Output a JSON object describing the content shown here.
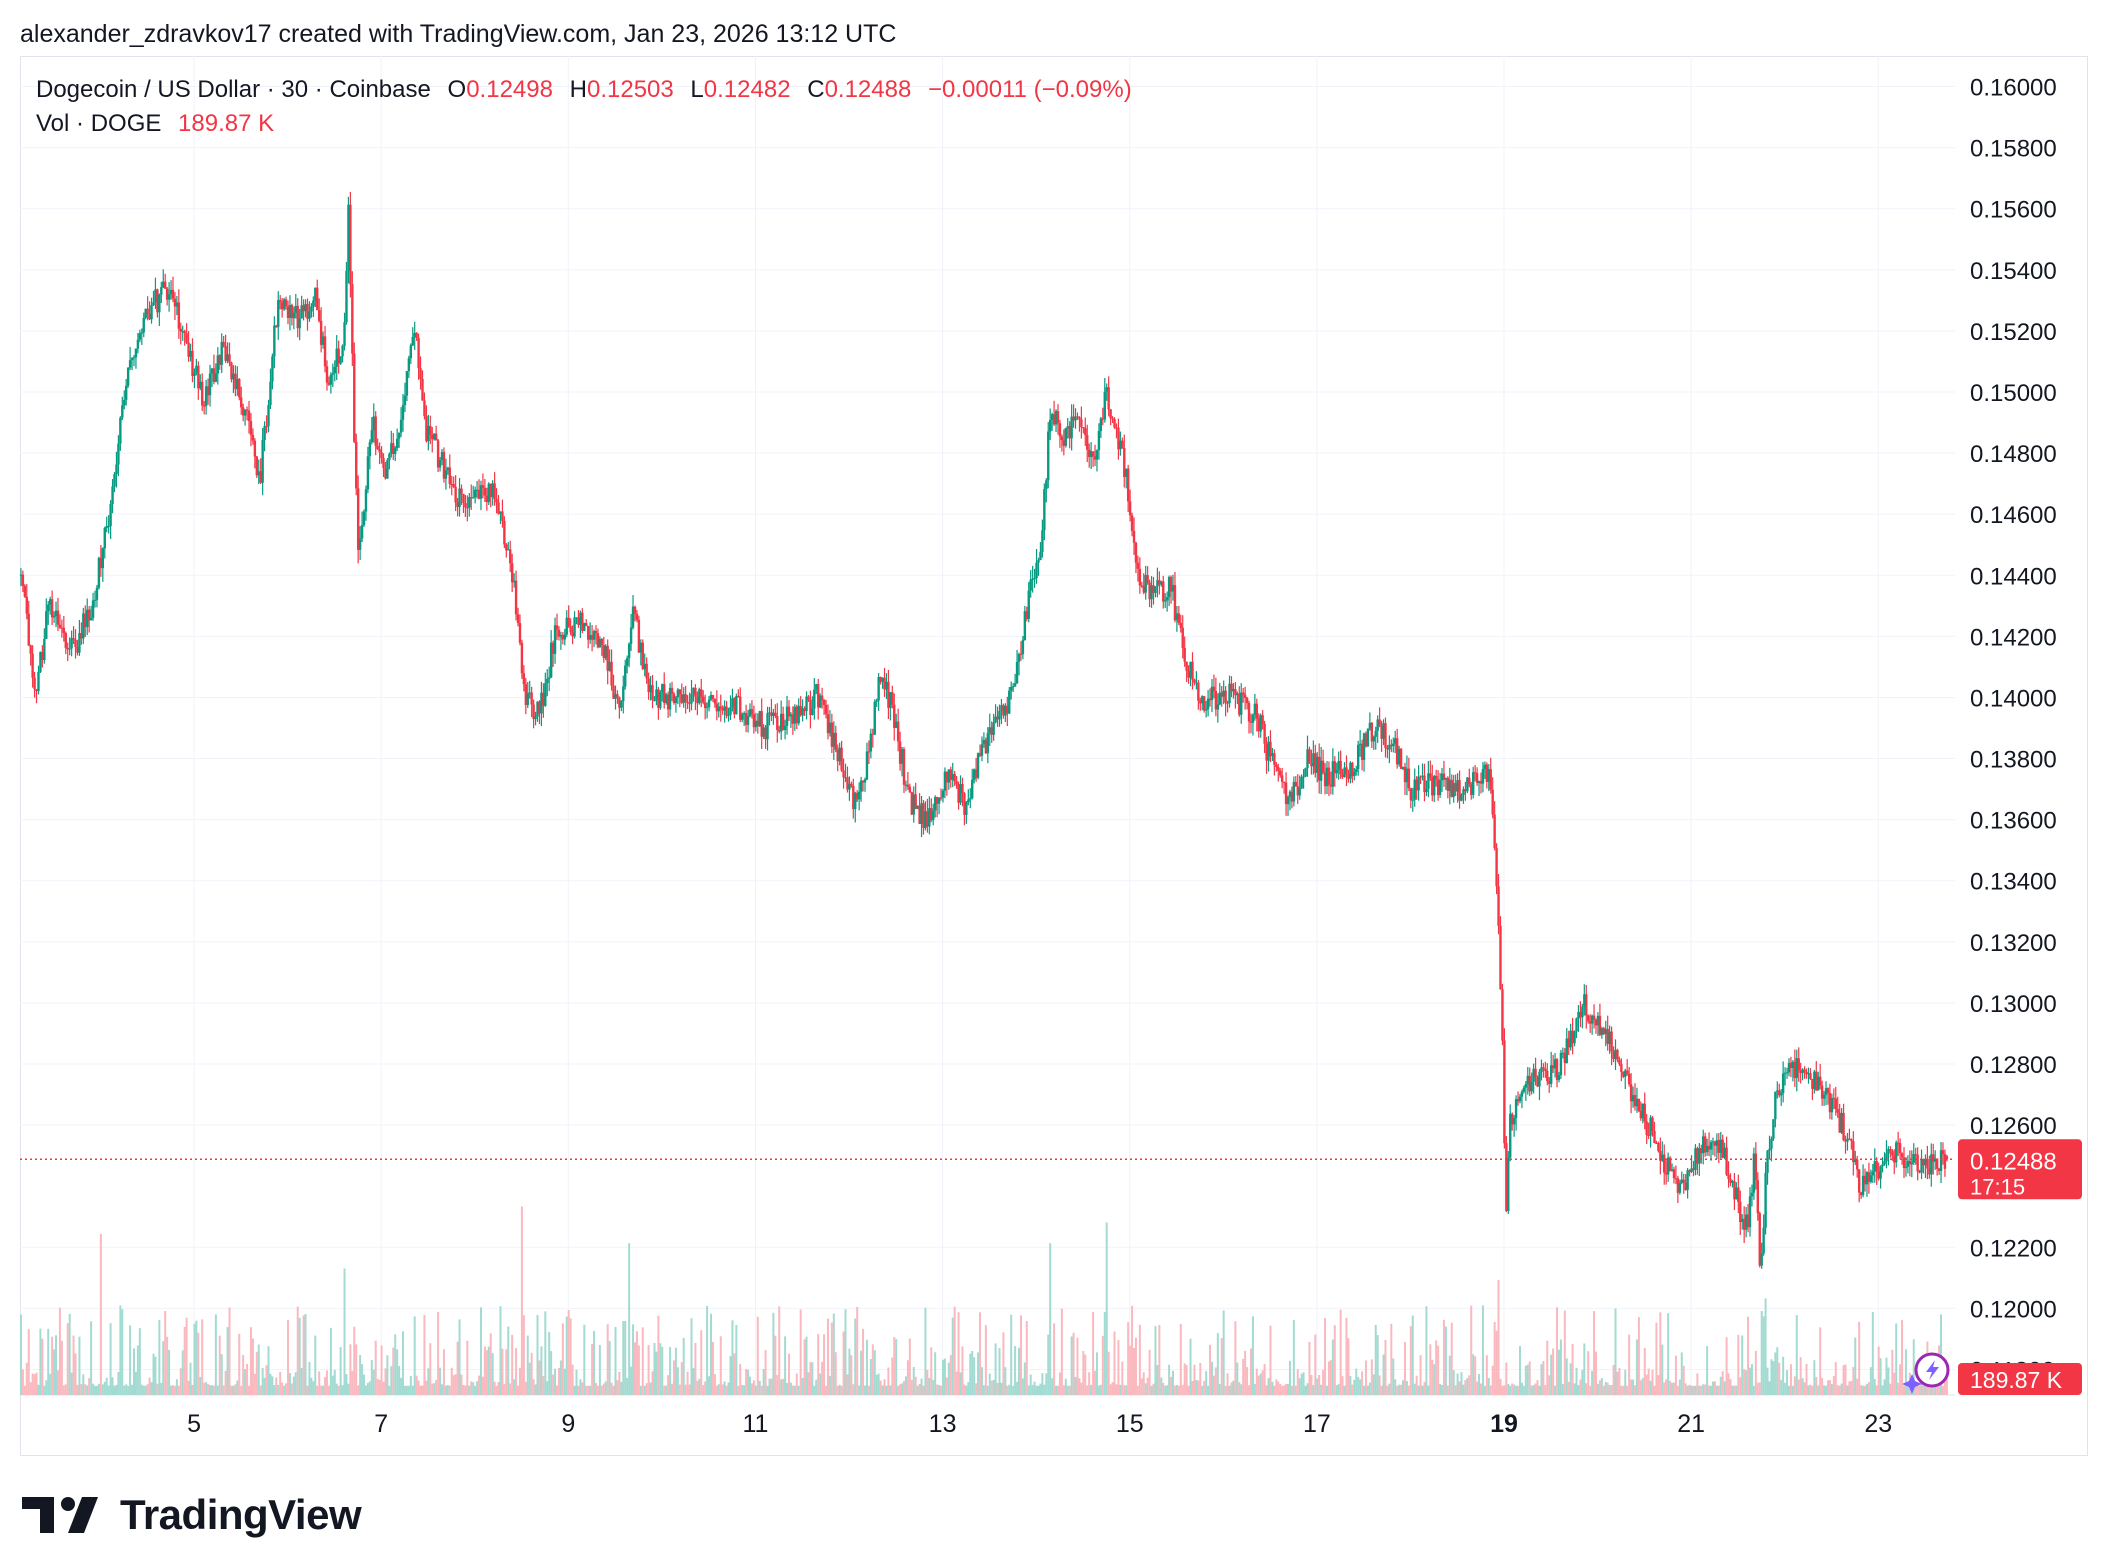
{
  "header": {
    "credit": "alexander_zdravkov17 created with TradingView.com, Jan 23, 2026 13:12 UTC"
  },
  "legend": {
    "symbol": "Dogecoin / US Dollar · 30 · Coinbase",
    "open_label": "O",
    "open": "0.12498",
    "high_label": "H",
    "high": "0.12503",
    "low_label": "L",
    "low": "0.12482",
    "close_label": "C",
    "close": "0.12488",
    "change": "−0.00011 (−0.09%)",
    "volume_label": "Vol · DOGE",
    "volume": "189.87 K"
  },
  "price_badge": {
    "price": "0.12488",
    "countdown": "17:15"
  },
  "volume_badge": "189.87 K",
  "brand": {
    "name": "TradingView"
  },
  "colors": {
    "up": "#089981",
    "down": "#f23645",
    "vol_up": "#a3dbd2",
    "vol_down": "#f9b9bf",
    "grid": "#f0f3fa",
    "text": "#131722"
  },
  "chart_data": {
    "type": "candlestick",
    "interval": "30 minutes",
    "y_axis": {
      "ticks": [
        "0.16000",
        "0.15800",
        "0.15600",
        "0.15400",
        "0.15200",
        "0.15000",
        "0.14800",
        "0.14600",
        "0.14400",
        "0.14200",
        "0.14000",
        "0.13800",
        "0.13600",
        "0.13400",
        "0.13200",
        "0.13000",
        "0.12800",
        "0.12600",
        "0.12200",
        "0.12000",
        "0.11800"
      ],
      "range": [
        0.117,
        0.161
      ]
    },
    "x_axis": {
      "ticks": [
        {
          "label": "5",
          "day": 5
        },
        {
          "label": "7",
          "day": 7
        },
        {
          "label": "9",
          "day": 9
        },
        {
          "label": "11",
          "day": 11
        },
        {
          "label": "13",
          "day": 13
        },
        {
          "label": "15",
          "day": 15
        },
        {
          "label": "17",
          "day": 17
        },
        {
          "label": "19",
          "day": 19,
          "bold": true
        },
        {
          "label": "21",
          "day": 21
        },
        {
          "label": "23",
          "day": 23
        }
      ],
      "range_days": [
        3.14,
        23.82
      ]
    },
    "current_price": 0.12488,
    "price_path": [
      {
        "day": 3.15,
        "price": 0.144
      },
      {
        "day": 3.3,
        "price": 0.14
      },
      {
        "day": 3.45,
        "price": 0.143
      },
      {
        "day": 3.7,
        "price": 0.1415
      },
      {
        "day": 3.9,
        "price": 0.143
      },
      {
        "day": 4.1,
        "price": 0.146
      },
      {
        "day": 4.3,
        "price": 0.151
      },
      {
        "day": 4.5,
        "price": 0.1525
      },
      {
        "day": 4.7,
        "price": 0.1535
      },
      {
        "day": 4.9,
        "price": 0.152
      },
      {
        "day": 5.1,
        "price": 0.1495
      },
      {
        "day": 5.3,
        "price": 0.1515
      },
      {
        "day": 5.5,
        "price": 0.15
      },
      {
        "day": 5.7,
        "price": 0.147
      },
      {
        "day": 5.9,
        "price": 0.153
      },
      {
        "day": 6.1,
        "price": 0.1525
      },
      {
        "day": 6.3,
        "price": 0.153
      },
      {
        "day": 6.45,
        "price": 0.15
      },
      {
        "day": 6.6,
        "price": 0.152
      },
      {
        "day": 6.65,
        "price": 0.156
      },
      {
        "day": 6.75,
        "price": 0.1445
      },
      {
        "day": 6.9,
        "price": 0.149
      },
      {
        "day": 7.05,
        "price": 0.1475
      },
      {
        "day": 7.2,
        "price": 0.1485
      },
      {
        "day": 7.35,
        "price": 0.1525
      },
      {
        "day": 7.45,
        "price": 0.149
      },
      {
        "day": 7.6,
        "price": 0.148
      },
      {
        "day": 7.8,
        "price": 0.1465
      },
      {
        "day": 8.0,
        "price": 0.1465
      },
      {
        "day": 8.2,
        "price": 0.147
      },
      {
        "day": 8.4,
        "price": 0.144
      },
      {
        "day": 8.55,
        "price": 0.14
      },
      {
        "day": 8.7,
        "price": 0.1395
      },
      {
        "day": 8.85,
        "price": 0.142
      },
      {
        "day": 9.1,
        "price": 0.1425
      },
      {
        "day": 9.35,
        "price": 0.142
      },
      {
        "day": 9.55,
        "price": 0.1395
      },
      {
        "day": 9.7,
        "price": 0.143
      },
      {
        "day": 9.85,
        "price": 0.14
      },
      {
        "day": 10.1,
        "price": 0.14
      },
      {
        "day": 10.5,
        "price": 0.14
      },
      {
        "day": 10.9,
        "price": 0.1395
      },
      {
        "day": 11.1,
        "price": 0.139
      },
      {
        "day": 11.4,
        "price": 0.1395
      },
      {
        "day": 11.65,
        "price": 0.14
      },
      {
        "day": 11.85,
        "price": 0.1385
      },
      {
        "day": 12.05,
        "price": 0.1365
      },
      {
        "day": 12.2,
        "price": 0.138
      },
      {
        "day": 12.35,
        "price": 0.141
      },
      {
        "day": 12.5,
        "price": 0.139
      },
      {
        "day": 12.65,
        "price": 0.1365
      },
      {
        "day": 12.85,
        "price": 0.136
      },
      {
        "day": 13.05,
        "price": 0.1375
      },
      {
        "day": 13.25,
        "price": 0.1365
      },
      {
        "day": 13.45,
        "price": 0.1385
      },
      {
        "day": 13.6,
        "price": 0.1395
      },
      {
        "day": 13.75,
        "price": 0.14
      },
      {
        "day": 13.9,
        "price": 0.143
      },
      {
        "day": 14.05,
        "price": 0.1445
      },
      {
        "day": 14.15,
        "price": 0.1495
      },
      {
        "day": 14.3,
        "price": 0.1485
      },
      {
        "day": 14.45,
        "price": 0.149
      },
      {
        "day": 14.6,
        "price": 0.1475
      },
      {
        "day": 14.75,
        "price": 0.15
      },
      {
        "day": 14.85,
        "price": 0.149
      },
      {
        "day": 14.95,
        "price": 0.1475
      },
      {
        "day": 15.1,
        "price": 0.144
      },
      {
        "day": 15.25,
        "price": 0.1435
      },
      {
        "day": 15.45,
        "price": 0.1435
      },
      {
        "day": 15.6,
        "price": 0.141
      },
      {
        "day": 15.8,
        "price": 0.14
      },
      {
        "day": 16.1,
        "price": 0.14
      },
      {
        "day": 16.35,
        "price": 0.1395
      },
      {
        "day": 16.55,
        "price": 0.1375
      },
      {
        "day": 16.7,
        "price": 0.1365
      },
      {
        "day": 16.9,
        "price": 0.138
      },
      {
        "day": 17.1,
        "price": 0.1375
      },
      {
        "day": 17.35,
        "price": 0.1375
      },
      {
        "day": 17.6,
        "price": 0.139
      },
      {
        "day": 17.8,
        "price": 0.1385
      },
      {
        "day": 18.0,
        "price": 0.137
      },
      {
        "day": 18.3,
        "price": 0.1372
      },
      {
        "day": 18.6,
        "price": 0.137
      },
      {
        "day": 18.85,
        "price": 0.1375
      },
      {
        "day": 18.92,
        "price": 0.134
      },
      {
        "day": 18.98,
        "price": 0.129
      },
      {
        "day": 19.02,
        "price": 0.123
      },
      {
        "day": 19.06,
        "price": 0.126
      },
      {
        "day": 19.15,
        "price": 0.1272
      },
      {
        "day": 19.4,
        "price": 0.1275
      },
      {
        "day": 19.6,
        "price": 0.128
      },
      {
        "day": 19.85,
        "price": 0.13
      },
      {
        "day": 20.0,
        "price": 0.1295
      },
      {
        "day": 20.15,
        "price": 0.1285
      },
      {
        "day": 20.35,
        "price": 0.127
      },
      {
        "day": 20.55,
        "price": 0.126
      },
      {
        "day": 20.75,
        "price": 0.1245
      },
      {
        "day": 20.95,
        "price": 0.124
      },
      {
        "day": 21.1,
        "price": 0.1255
      },
      {
        "day": 21.3,
        "price": 0.1255
      },
      {
        "day": 21.5,
        "price": 0.1235
      },
      {
        "day": 21.6,
        "price": 0.1225
      },
      {
        "day": 21.68,
        "price": 0.125
      },
      {
        "day": 21.74,
        "price": 0.121
      },
      {
        "day": 21.8,
        "price": 0.1245
      },
      {
        "day": 21.9,
        "price": 0.127
      },
      {
        "day": 22.05,
        "price": 0.128
      },
      {
        "day": 22.25,
        "price": 0.1275
      },
      {
        "day": 22.45,
        "price": 0.127
      },
      {
        "day": 22.65,
        "price": 0.1258
      },
      {
        "day": 22.8,
        "price": 0.124
      },
      {
        "day": 22.95,
        "price": 0.1245
      },
      {
        "day": 23.2,
        "price": 0.125
      },
      {
        "day": 23.45,
        "price": 0.1248
      },
      {
        "day": 23.75,
        "price": 0.1249
      }
    ],
    "volume_spikes": [
      {
        "day": 4.0,
        "ratio": 0.7
      },
      {
        "day": 6.6,
        "ratio": 0.55
      },
      {
        "day": 8.5,
        "ratio": 0.82
      },
      {
        "day": 9.65,
        "ratio": 0.66
      },
      {
        "day": 14.15,
        "ratio": 0.66
      },
      {
        "day": 14.75,
        "ratio": 0.75
      },
      {
        "day": 18.95,
        "ratio": 0.5
      },
      {
        "day": 21.8,
        "ratio": 0.42
      }
    ]
  }
}
